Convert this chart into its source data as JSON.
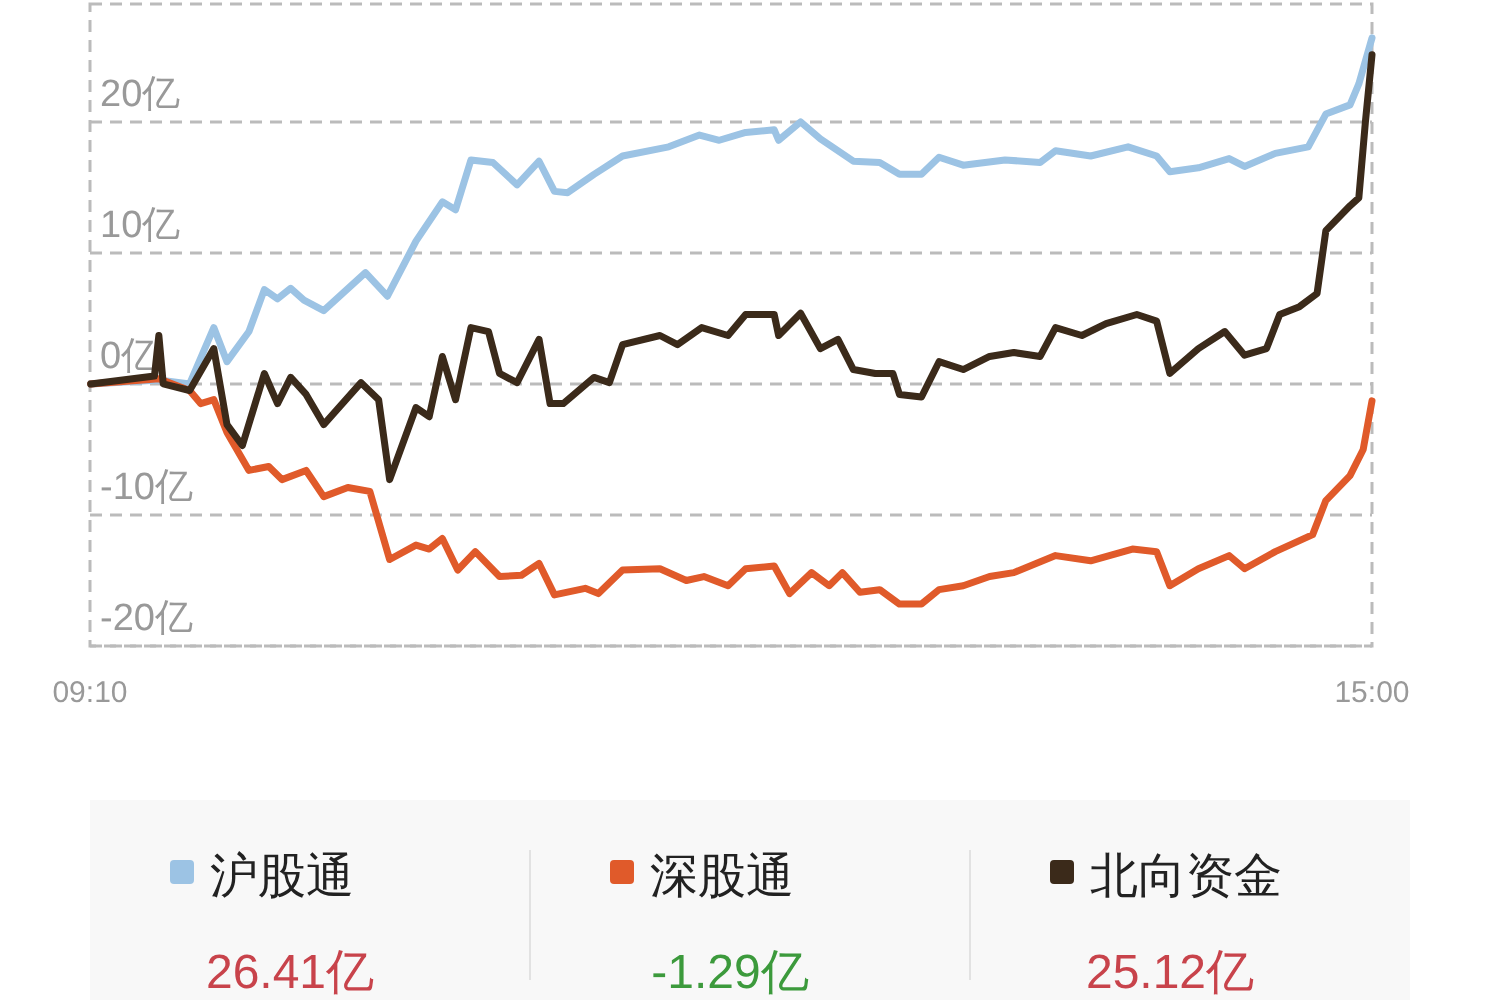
{
  "chart_data": {
    "type": "line",
    "ylim": [
      -20,
      29
    ],
    "yticks": [
      {
        "value": 20,
        "label": "20亿"
      },
      {
        "value": 10,
        "label": "10亿"
      },
      {
        "value": 0,
        "label": "0亿"
      },
      {
        "value": -10,
        "label": "-10亿"
      },
      {
        "value": -20,
        "label": "-20亿"
      }
    ],
    "xlim": [
      9.1667,
      15
    ],
    "xticks": [
      {
        "value": 9.1667,
        "label": "09:10"
      },
      {
        "value": 15,
        "label": "15:00"
      }
    ],
    "grid": "y",
    "legend": "bottom",
    "marker": "none",
    "line_style": "solid",
    "annotations": [
      "26.41亿",
      "-1.29亿",
      "25.12亿"
    ],
    "series": [
      {
        "name": "沪股通",
        "color": "#9cc3e4",
        "x": [
          9.17,
          9.48,
          9.62,
          9.73,
          9.79,
          9.89,
          9.96,
          10.02,
          10.08,
          10.14,
          10.23,
          10.42,
          10.52,
          10.65,
          10.77,
          10.83,
          10.9,
          11,
          11.11,
          11.21,
          11.28,
          11.34,
          11.46,
          11.59,
          11.8,
          11.94,
          12.03,
          12.15,
          12.28,
          12.3,
          12.4,
          12.49,
          12.64,
          12.76,
          12.85,
          12.95,
          13.03,
          13.14,
          13.33,
          13.49,
          13.56,
          13.72,
          13.89,
          14.02,
          14.08,
          14.21,
          14.35,
          14.42,
          14.56,
          14.71,
          14.79,
          14.9,
          14.94,
          15
        ],
        "values": [
          0,
          0.3,
          0,
          4.3,
          1.7,
          4,
          7.2,
          6.5,
          7.3,
          6.4,
          5.6,
          8.5,
          6.7,
          10.9,
          13.9,
          13.3,
          17.1,
          16.9,
          15.2,
          17,
          14.7,
          14.6,
          16,
          17.4,
          18.1,
          19,
          18.6,
          19.2,
          19.4,
          18.6,
          20,
          18.7,
          17,
          16.9,
          16,
          16,
          17.3,
          16.7,
          17.1,
          16.9,
          17.8,
          17.4,
          18.1,
          17.4,
          16.2,
          16.5,
          17.2,
          16.6,
          17.6,
          18.1,
          20.6,
          21.3,
          22.9,
          26.41
        ]
      },
      {
        "name": "深股通",
        "color": "#e05a2a",
        "x": [
          9.17,
          9.48,
          9.62,
          9.67,
          9.73,
          9.79,
          9.89,
          9.98,
          10.04,
          10.15,
          10.23,
          10.34,
          10.44,
          10.53,
          10.65,
          10.71,
          10.77,
          10.84,
          10.92,
          11.03,
          11.13,
          11.21,
          11.28,
          11.42,
          11.48,
          11.59,
          11.76,
          11.88,
          11.96,
          12.07,
          12.15,
          12.28,
          12.35,
          12.45,
          12.53,
          12.59,
          12.67,
          12.76,
          12.85,
          12.95,
          13.03,
          13.14,
          13.26,
          13.37,
          13.56,
          13.72,
          13.91,
          14.02,
          14.08,
          14.21,
          14.35,
          14.42,
          14.56,
          14.73,
          14.79,
          14.9,
          14.96,
          15
        ],
        "values": [
          0,
          0.4,
          -0.5,
          -1.5,
          -1.2,
          -3.7,
          -6.6,
          -6.3,
          -7.3,
          -6.6,
          -8.6,
          -7.9,
          -8.2,
          -13.4,
          -12.3,
          -12.6,
          -11.8,
          -14.2,
          -12.8,
          -14.7,
          -14.6,
          -13.7,
          -16.1,
          -15.6,
          -16,
          -14.2,
          -14.1,
          -15,
          -14.7,
          -15.4,
          -14.1,
          -13.9,
          -16,
          -14.4,
          -15.4,
          -14.4,
          -15.9,
          -15.7,
          -16.8,
          -16.8,
          -15.7,
          -15.4,
          -14.7,
          -14.4,
          -13.1,
          -13.5,
          -12.6,
          -12.8,
          -15.4,
          -14.1,
          -13.1,
          -14.1,
          -12.8,
          -11.5,
          -8.9,
          -7,
          -5,
          -1.29
        ]
      },
      {
        "name": "北向资金",
        "color": "#3b2a1a",
        "x": [
          9.17,
          9.46,
          9.48,
          9.5,
          9.62,
          9.73,
          9.79,
          9.86,
          9.96,
          10.02,
          10.08,
          10.15,
          10.23,
          10.4,
          10.48,
          10.53,
          10.65,
          10.71,
          10.77,
          10.83,
          10.9,
          10.98,
          11.03,
          11.11,
          11.21,
          11.26,
          11.32,
          11.46,
          11.53,
          11.59,
          11.76,
          11.84,
          11.95,
          12.07,
          12.15,
          12.28,
          12.3,
          12.4,
          12.49,
          12.57,
          12.64,
          12.74,
          12.82,
          12.85,
          12.95,
          13.03,
          13.14,
          13.26,
          13.37,
          13.49,
          13.56,
          13.68,
          13.79,
          13.93,
          14.02,
          14.08,
          14.21,
          14.33,
          14.42,
          14.52,
          14.58,
          14.67,
          14.75,
          14.79,
          14.9,
          14.94,
          14.97,
          15
        ],
        "values": [
          0,
          0.6,
          3.7,
          0,
          -0.5,
          2.7,
          -3.1,
          -4.7,
          0.8,
          -1.5,
          0.5,
          -0.8,
          -3.1,
          0.1,
          -1.2,
          -7.3,
          -1.8,
          -2.5,
          2.1,
          -1.2,
          4.3,
          4,
          0.8,
          0.1,
          3.4,
          -1.5,
          -1.5,
          0.5,
          0.1,
          3,
          3.7,
          3,
          4.3,
          3.7,
          5.3,
          5.3,
          3.7,
          5.4,
          2.7,
          3.4,
          1.1,
          0.8,
          0.8,
          -0.8,
          -1,
          1.7,
          1.1,
          2.1,
          2.4,
          2.1,
          4.3,
          3.7,
          4.6,
          5.3,
          4.8,
          0.8,
          2.7,
          4,
          2.2,
          2.7,
          5.3,
          5.9,
          6.9,
          11.7,
          13.6,
          14.2,
          20,
          25.12
        ]
      }
    ]
  }
}
